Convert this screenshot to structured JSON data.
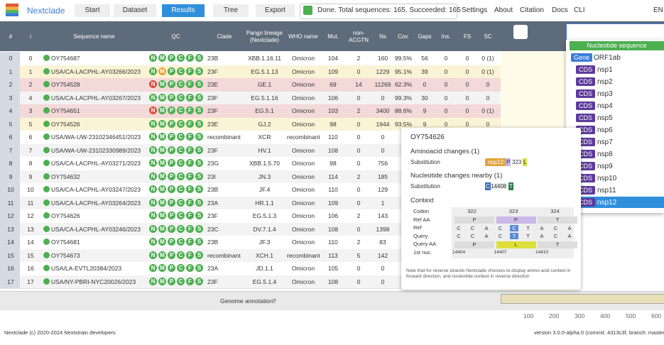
{
  "nav": {
    "logo": "Nextclade",
    "steps": [
      "Start",
      "Dataset",
      "Results",
      "Tree",
      "Export"
    ],
    "active_step": 2,
    "status": "Done. Total sequences: 165. Succeeded: 165",
    "links": [
      "Settings",
      "About",
      "Citation",
      "Docs",
      "CLI"
    ],
    "lang": "EN"
  },
  "table": {
    "columns": [
      "#",
      "i",
      "Sequence name",
      "QC",
      "Clade",
      "Pango lineage (Nextclade)",
      "WHO name",
      "Mut.",
      "non-ACGTN",
      "Ns",
      "Cov.",
      "Gaps",
      "Ins.",
      "FS",
      "SC"
    ],
    "qc_letters": [
      "N",
      "M",
      "P",
      "C",
      "F",
      "S"
    ],
    "rows": [
      {
        "bg": "#ffffff",
        "qc": [
          "#4caf50",
          "#4caf50",
          "#4caf50",
          "#4caf50",
          "#4caf50",
          "#4caf50"
        ],
        "cells": [
          "0",
          "0",
          "OY754687",
          "23B",
          "XBB.1.16.11",
          "Omicron",
          "104",
          "2",
          "160",
          "99.5%",
          "56",
          "0",
          "0",
          "0 (1)"
        ]
      },
      {
        "bg": "#fbf3d5",
        "qc": [
          "#4caf50",
          "#f0a030",
          "#4caf50",
          "#4caf50",
          "#4caf50",
          "#4caf50"
        ],
        "cells": [
          "1",
          "1",
          "USA/CA-LACPHL-AY03266/2023",
          "23F",
          "EG.5.1.13",
          "Omicron",
          "109",
          "0",
          "1229",
          "95.1%",
          "39",
          "0",
          "0",
          "0 (1)"
        ]
      },
      {
        "bg": "#f4d9d9",
        "qc": [
          "#e04a3f",
          "#4caf50",
          "#4caf50",
          "#4caf50",
          "#4caf50",
          "#4caf50"
        ],
        "cells": [
          "2",
          "2",
          "OY754528",
          "23E",
          "GE.1",
          "Omicron",
          "69",
          "14",
          "11269",
          "62.3%",
          "0",
          "0",
          "0",
          "0"
        ]
      },
      {
        "bg": "#f3f3f3",
        "qc": [
          "#4caf50",
          "#4caf50",
          "#4caf50",
          "#4caf50",
          "#4caf50",
          "#4caf50"
        ],
        "cells": [
          "3",
          "4",
          "USA/CA-LACPHL-AY03267/2023",
          "23F",
          "EG.5.1.16",
          "Omicron",
          "106",
          "0",
          "0",
          "99.3%",
          "30",
          "0",
          "0",
          "0"
        ]
      },
      {
        "bg": "#f4d9d9",
        "qc": [
          "#e04a3f",
          "#4caf50",
          "#4caf50",
          "#4caf50",
          "#4caf50",
          "#4caf50"
        ],
        "cells": [
          "4",
          "3",
          "OY754651",
          "23F",
          "EG.5.1",
          "Omicron",
          "103",
          "2",
          "3400",
          "88.6%",
          "9",
          "0",
          "0",
          "0 (1)"
        ]
      },
      {
        "bg": "#fbf3d5",
        "qc": [
          "#4caf50",
          "#4caf50",
          "#4caf50",
          "#4caf50",
          "#4caf50",
          "#4caf50"
        ],
        "cells": [
          "5",
          "5",
          "OY754526",
          "23E",
          "GJ.2",
          "Omicron",
          "98",
          "0",
          "1944",
          "93.5%",
          "9",
          "0",
          "0",
          "0"
        ]
      },
      {
        "bg": "#ffffff",
        "qc": [
          "#4caf50",
          "#4caf50",
          "#4caf50",
          "#4caf50",
          "#4caf50",
          "#4caf50"
        ],
        "cells": [
          "6",
          "6",
          "USA/WA-UW-23102346451/2023",
          "recombinant",
          "XCR",
          "recombinant",
          "110",
          "0",
          "0"
        ]
      },
      {
        "bg": "#f3f3f3",
        "qc": [
          "#4caf50",
          "#4caf50",
          "#4caf50",
          "#4caf50",
          "#4caf50",
          "#4caf50"
        ],
        "cells": [
          "7",
          "7",
          "USA/WA-UW-23102330989/2023",
          "23F",
          "HV.1",
          "Omicron",
          "108",
          "0",
          "0"
        ]
      },
      {
        "bg": "#ffffff",
        "qc": [
          "#4caf50",
          "#4caf50",
          "#4caf50",
          "#4caf50",
          "#4caf50",
          "#4caf50"
        ],
        "cells": [
          "8",
          "8",
          "USA/CA-LACPHL-AY03271/2023",
          "23G",
          "XBB.1.5.70",
          "Omicron",
          "98",
          "0",
          "756"
        ]
      },
      {
        "bg": "#f3f3f3",
        "qc": [
          "#4caf50",
          "#4caf50",
          "#4caf50",
          "#4caf50",
          "#4caf50",
          "#4caf50"
        ],
        "cells": [
          "9",
          "9",
          "OY754632",
          "23I",
          "JN.3",
          "Omicron",
          "114",
          "2",
          "185"
        ]
      },
      {
        "bg": "#ffffff",
        "qc": [
          "#4caf50",
          "#4caf50",
          "#4caf50",
          "#4caf50",
          "#4caf50",
          "#4caf50"
        ],
        "cells": [
          "10",
          "10",
          "USA/CA-LACPHL-AY03247/2023",
          "23B",
          "JF.4",
          "Omicron",
          "110",
          "0",
          "129"
        ]
      },
      {
        "bg": "#f3f3f3",
        "qc": [
          "#4caf50",
          "#4caf50",
          "#4caf50",
          "#4caf50",
          "#4caf50",
          "#4caf50"
        ],
        "cells": [
          "11",
          "11",
          "USA/CA-LACPHL-AY03264/2023",
          "23A",
          "HR.1.1",
          "Omicron",
          "109",
          "0",
          "1"
        ]
      },
      {
        "bg": "#ffffff",
        "qc": [
          "#4caf50",
          "#4caf50",
          "#4caf50",
          "#4caf50",
          "#4caf50",
          "#4caf50"
        ],
        "cells": [
          "12",
          "12",
          "OY754626",
          "23F",
          "EG.5.1.3",
          "Omicron",
          "106",
          "2",
          "143"
        ]
      },
      {
        "bg": "#f3f3f3",
        "qc": [
          "#4caf50",
          "#4caf50",
          "#4caf50",
          "#4caf50",
          "#4caf50",
          "#4caf50"
        ],
        "cells": [
          "13",
          "13",
          "USA/CA-LACPHL-AY03246/2023",
          "23C",
          "DV.7.1.4",
          "Omicron",
          "108",
          "0",
          "1398"
        ]
      },
      {
        "bg": "#ffffff",
        "qc": [
          "#4caf50",
          "#4caf50",
          "#4caf50",
          "#4caf50",
          "#4caf50",
          "#4caf50"
        ],
        "cells": [
          "14",
          "14",
          "OY754681",
          "23B",
          "JF.3",
          "Omicron",
          "110",
          "2",
          "83"
        ]
      },
      {
        "bg": "#f3f3f3",
        "qc": [
          "#4caf50",
          "#4caf50",
          "#4caf50",
          "#4caf50",
          "#4caf50",
          "#4caf50"
        ],
        "cells": [
          "15",
          "15",
          "OY754673",
          "recombinant",
          "XCH.1",
          "recombinant",
          "113",
          "5",
          "142"
        ]
      },
      {
        "bg": "#ffffff",
        "qc": [
          "#4caf50",
          "#4caf50",
          "#4caf50",
          "#4caf50",
          "#4caf50",
          "#4caf50"
        ],
        "cells": [
          "16",
          "16",
          "USA/LA-EVTL20384/2023",
          "23A",
          "JD.1.1",
          "Omicron",
          "105",
          "0",
          "0"
        ]
      },
      {
        "bg": "#f3f3f3",
        "qc": [
          "#4caf50",
          "#4caf50",
          "#4caf50",
          "#4caf50",
          "#4caf50",
          "#4caf50"
        ],
        "cells": [
          "17",
          "17",
          "USA/NY-PBRI-NYC20026/2023",
          "23F",
          "EG.5.1.4",
          "Omicron",
          "108",
          "0",
          "0"
        ]
      }
    ]
  },
  "dropdown": {
    "title": "Nucleotide sequence",
    "gene_tag": "Gene",
    "gene": "ORF1ab",
    "cds_tag": "CDS",
    "cds": [
      "nsp1",
      "nsp2",
      "nsp3",
      "nsp4",
      "nsp5",
      "nsp6",
      "nsp7",
      "nsp8",
      "nsp9",
      "nsp10",
      "nsp11",
      "nsp12"
    ],
    "selected": 11
  },
  "tooltip": {
    "title": "OY754626",
    "aa_heading": "Aminoacid changes (1)",
    "aa_type": "Substitution",
    "aa_change": {
      "cds": "nsp12:",
      "ref": "P",
      "pos": "323",
      "alt": "L"
    },
    "nuc_heading": "Nucleotide changes nearby (1)",
    "nuc_type": "Substitution",
    "nuc_change": {
      "ref": "C",
      "pos": "14408",
      "alt": "T"
    },
    "context_heading": "Context",
    "context": {
      "row_labels": [
        "Codon",
        "Ref AA",
        "Ref",
        "Query",
        "Query AA",
        "1st nuc."
      ],
      "codons": [
        "322",
        "323",
        "324"
      ],
      "ref_aa": [
        "P",
        "P",
        "T"
      ],
      "ref": [
        "C",
        "C",
        "A",
        "C",
        "C",
        "T",
        "A",
        "C",
        "A"
      ],
      "query": [
        "C",
        "C",
        "A",
        "C",
        "T",
        "T",
        "A",
        "C",
        "A"
      ],
      "query_aa": [
        "P",
        "L",
        "T"
      ],
      "first_nuc": [
        "14404",
        "14407",
        "14410"
      ]
    },
    "note": "Note that for reverse strands Nextclade chooses to display amino acid context in forward direction, and nucleotide context in reverse direction"
  },
  "genome": {
    "label": "Genome annotation",
    "help": "?",
    "ticks": [
      "100",
      "200",
      "300",
      "400",
      "500",
      "600"
    ]
  },
  "footer": {
    "left": "Nextclade (c) 2020-2024 Nextstrain developers",
    "right": "version 3.0.0-alpha.0 (commit: 4313c3f, branch: master)"
  }
}
